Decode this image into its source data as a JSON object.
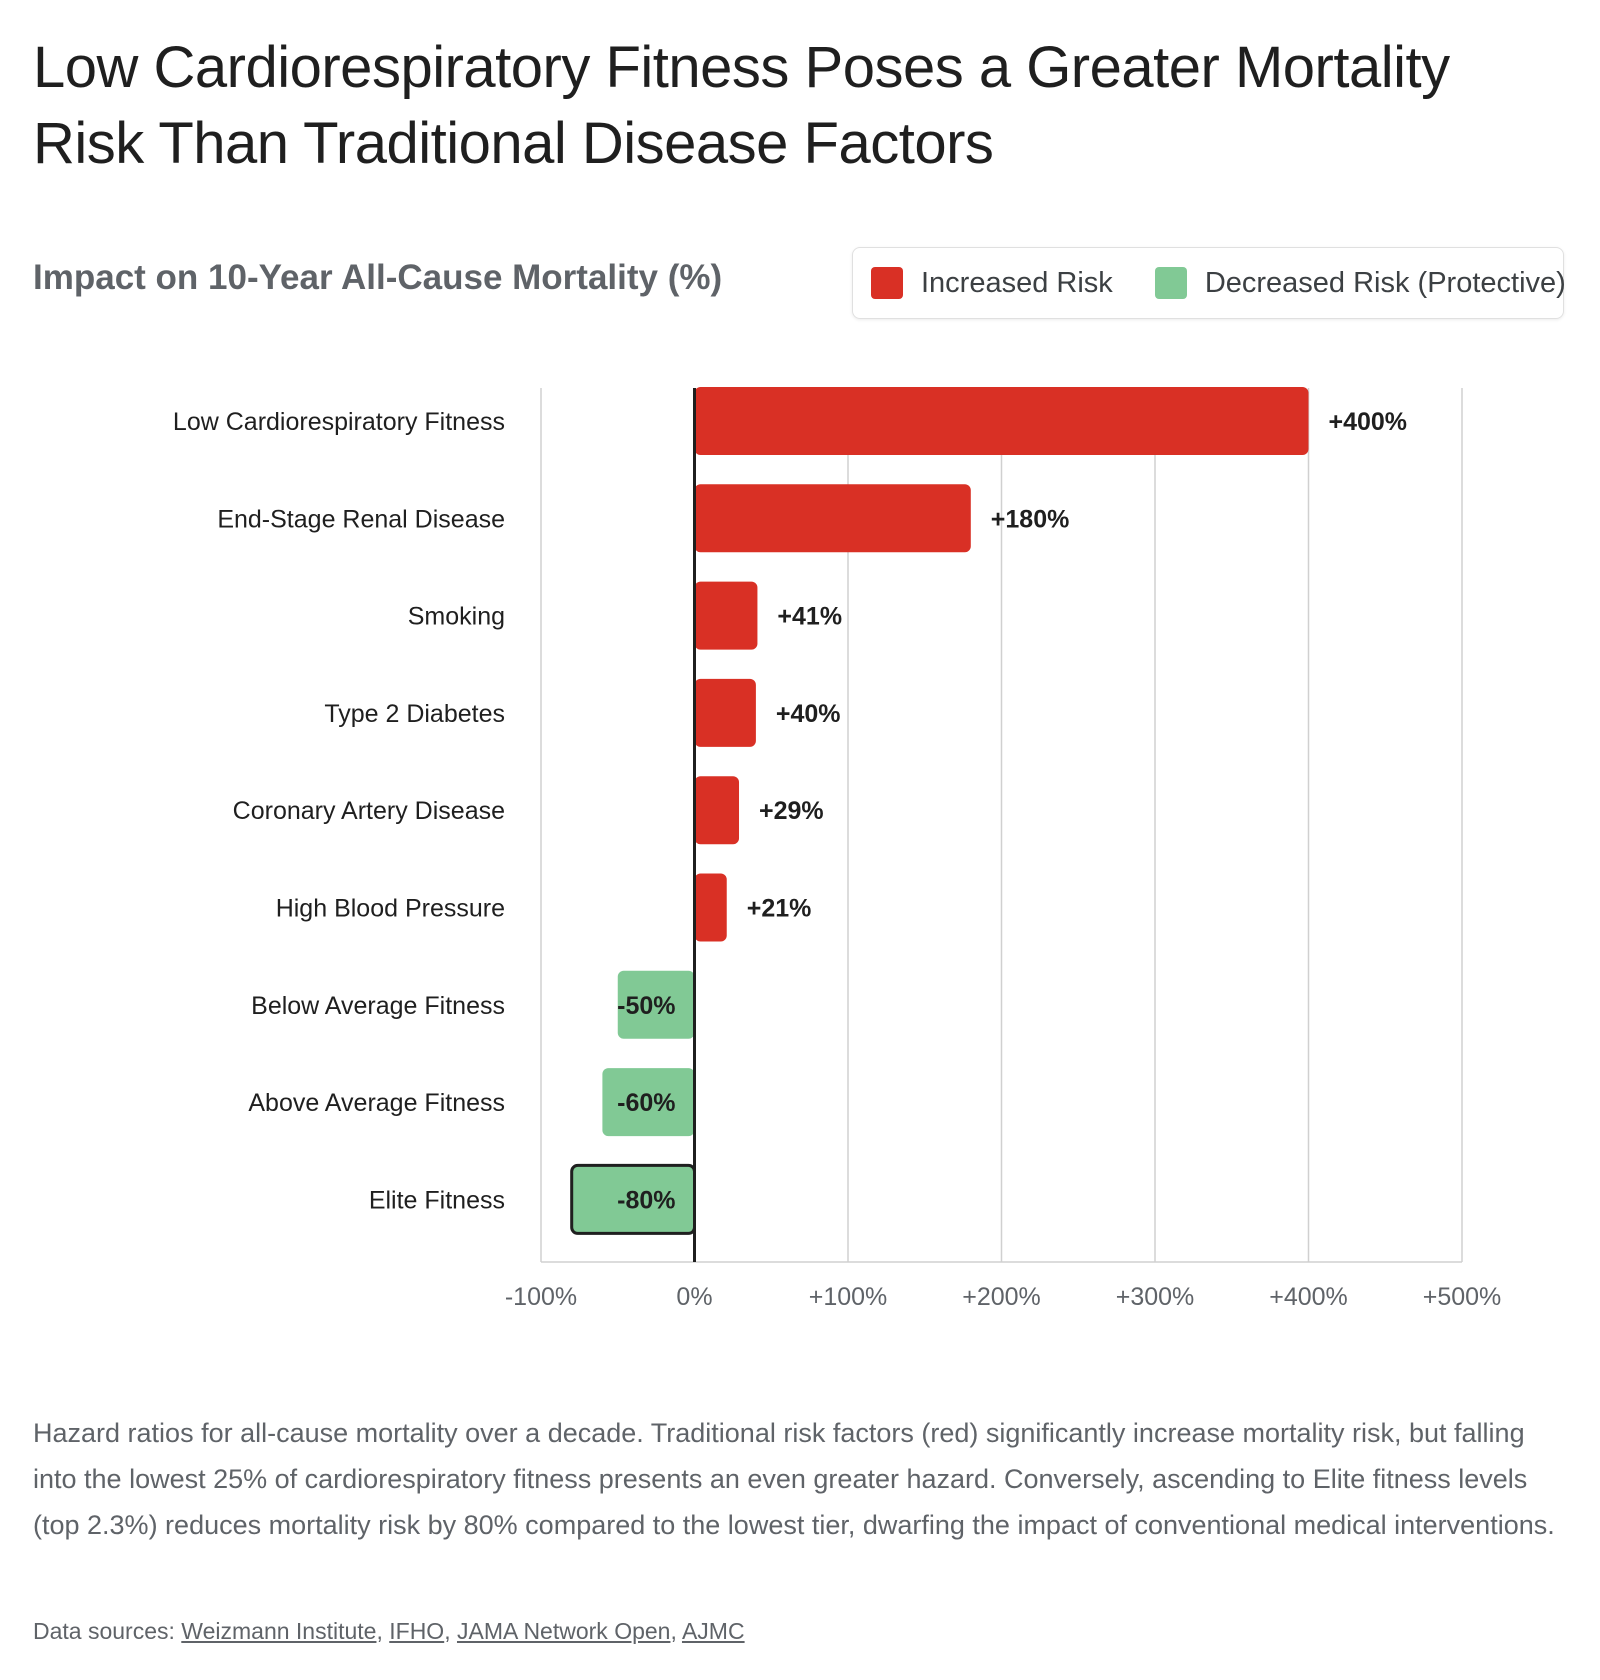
{
  "title": "Low Cardiorespiratory Fitness Poses a Greater Mortality Risk Than Traditional Disease Factors",
  "subtitle": "Impact on 10-Year All-Cause Mortality (%)",
  "legend": {
    "increased": {
      "label": "Increased Risk",
      "color": "#d93025"
    },
    "decreased": {
      "label": "Decreased Risk (Protective)",
      "color": "#81c995"
    }
  },
  "chart_data": {
    "type": "bar",
    "orientation": "horizontal",
    "categories": [
      "Low Cardiorespiratory Fitness",
      "End-Stage Renal Disease",
      "Smoking",
      "Type 2 Diabetes",
      "Coronary Artery Disease",
      "High Blood Pressure",
      "Below Average Fitness",
      "Above Average Fitness",
      "Elite Fitness"
    ],
    "values": [
      400,
      180,
      41,
      40,
      29,
      21,
      -50,
      -60,
      -80
    ],
    "value_labels": [
      "+400%",
      "+180%",
      "+41%",
      "+40%",
      "+29%",
      "+21%",
      "-50%",
      "-60%",
      "-80%"
    ],
    "highlighted": "Elite Fitness",
    "xlim": [
      -100,
      500
    ],
    "xticks": [
      -100,
      0,
      100,
      200,
      300,
      400,
      500
    ],
    "xtick_labels": [
      "-100%",
      "0%",
      "+100%",
      "+200%",
      "+300%",
      "+400%",
      "+500%"
    ],
    "grid": "vertical",
    "legend_position": "top-right",
    "colors": {
      "positive": "#d93025",
      "negative": "#81c995",
      "zero_line": "#1f1f1f",
      "grid": "#d0d0d0"
    }
  },
  "caption": "Hazard ratios for all-cause mortality over a decade. Traditional risk factors (red) significantly increase mortality risk, but falling into the lowest 25% of cardiorespiratory fitness presents an even greater hazard. Conversely, ascending to Elite fitness levels (top 2.3%) reduces mortality risk by 80% compared to the lowest tier, dwarfing the impact of conventional medical interventions.",
  "sources": {
    "prefix": "Data sources: ",
    "links": [
      "Weizmann Institute",
      "IFHO",
      "JAMA Network Open",
      "AJMC"
    ],
    "separator": ", "
  }
}
